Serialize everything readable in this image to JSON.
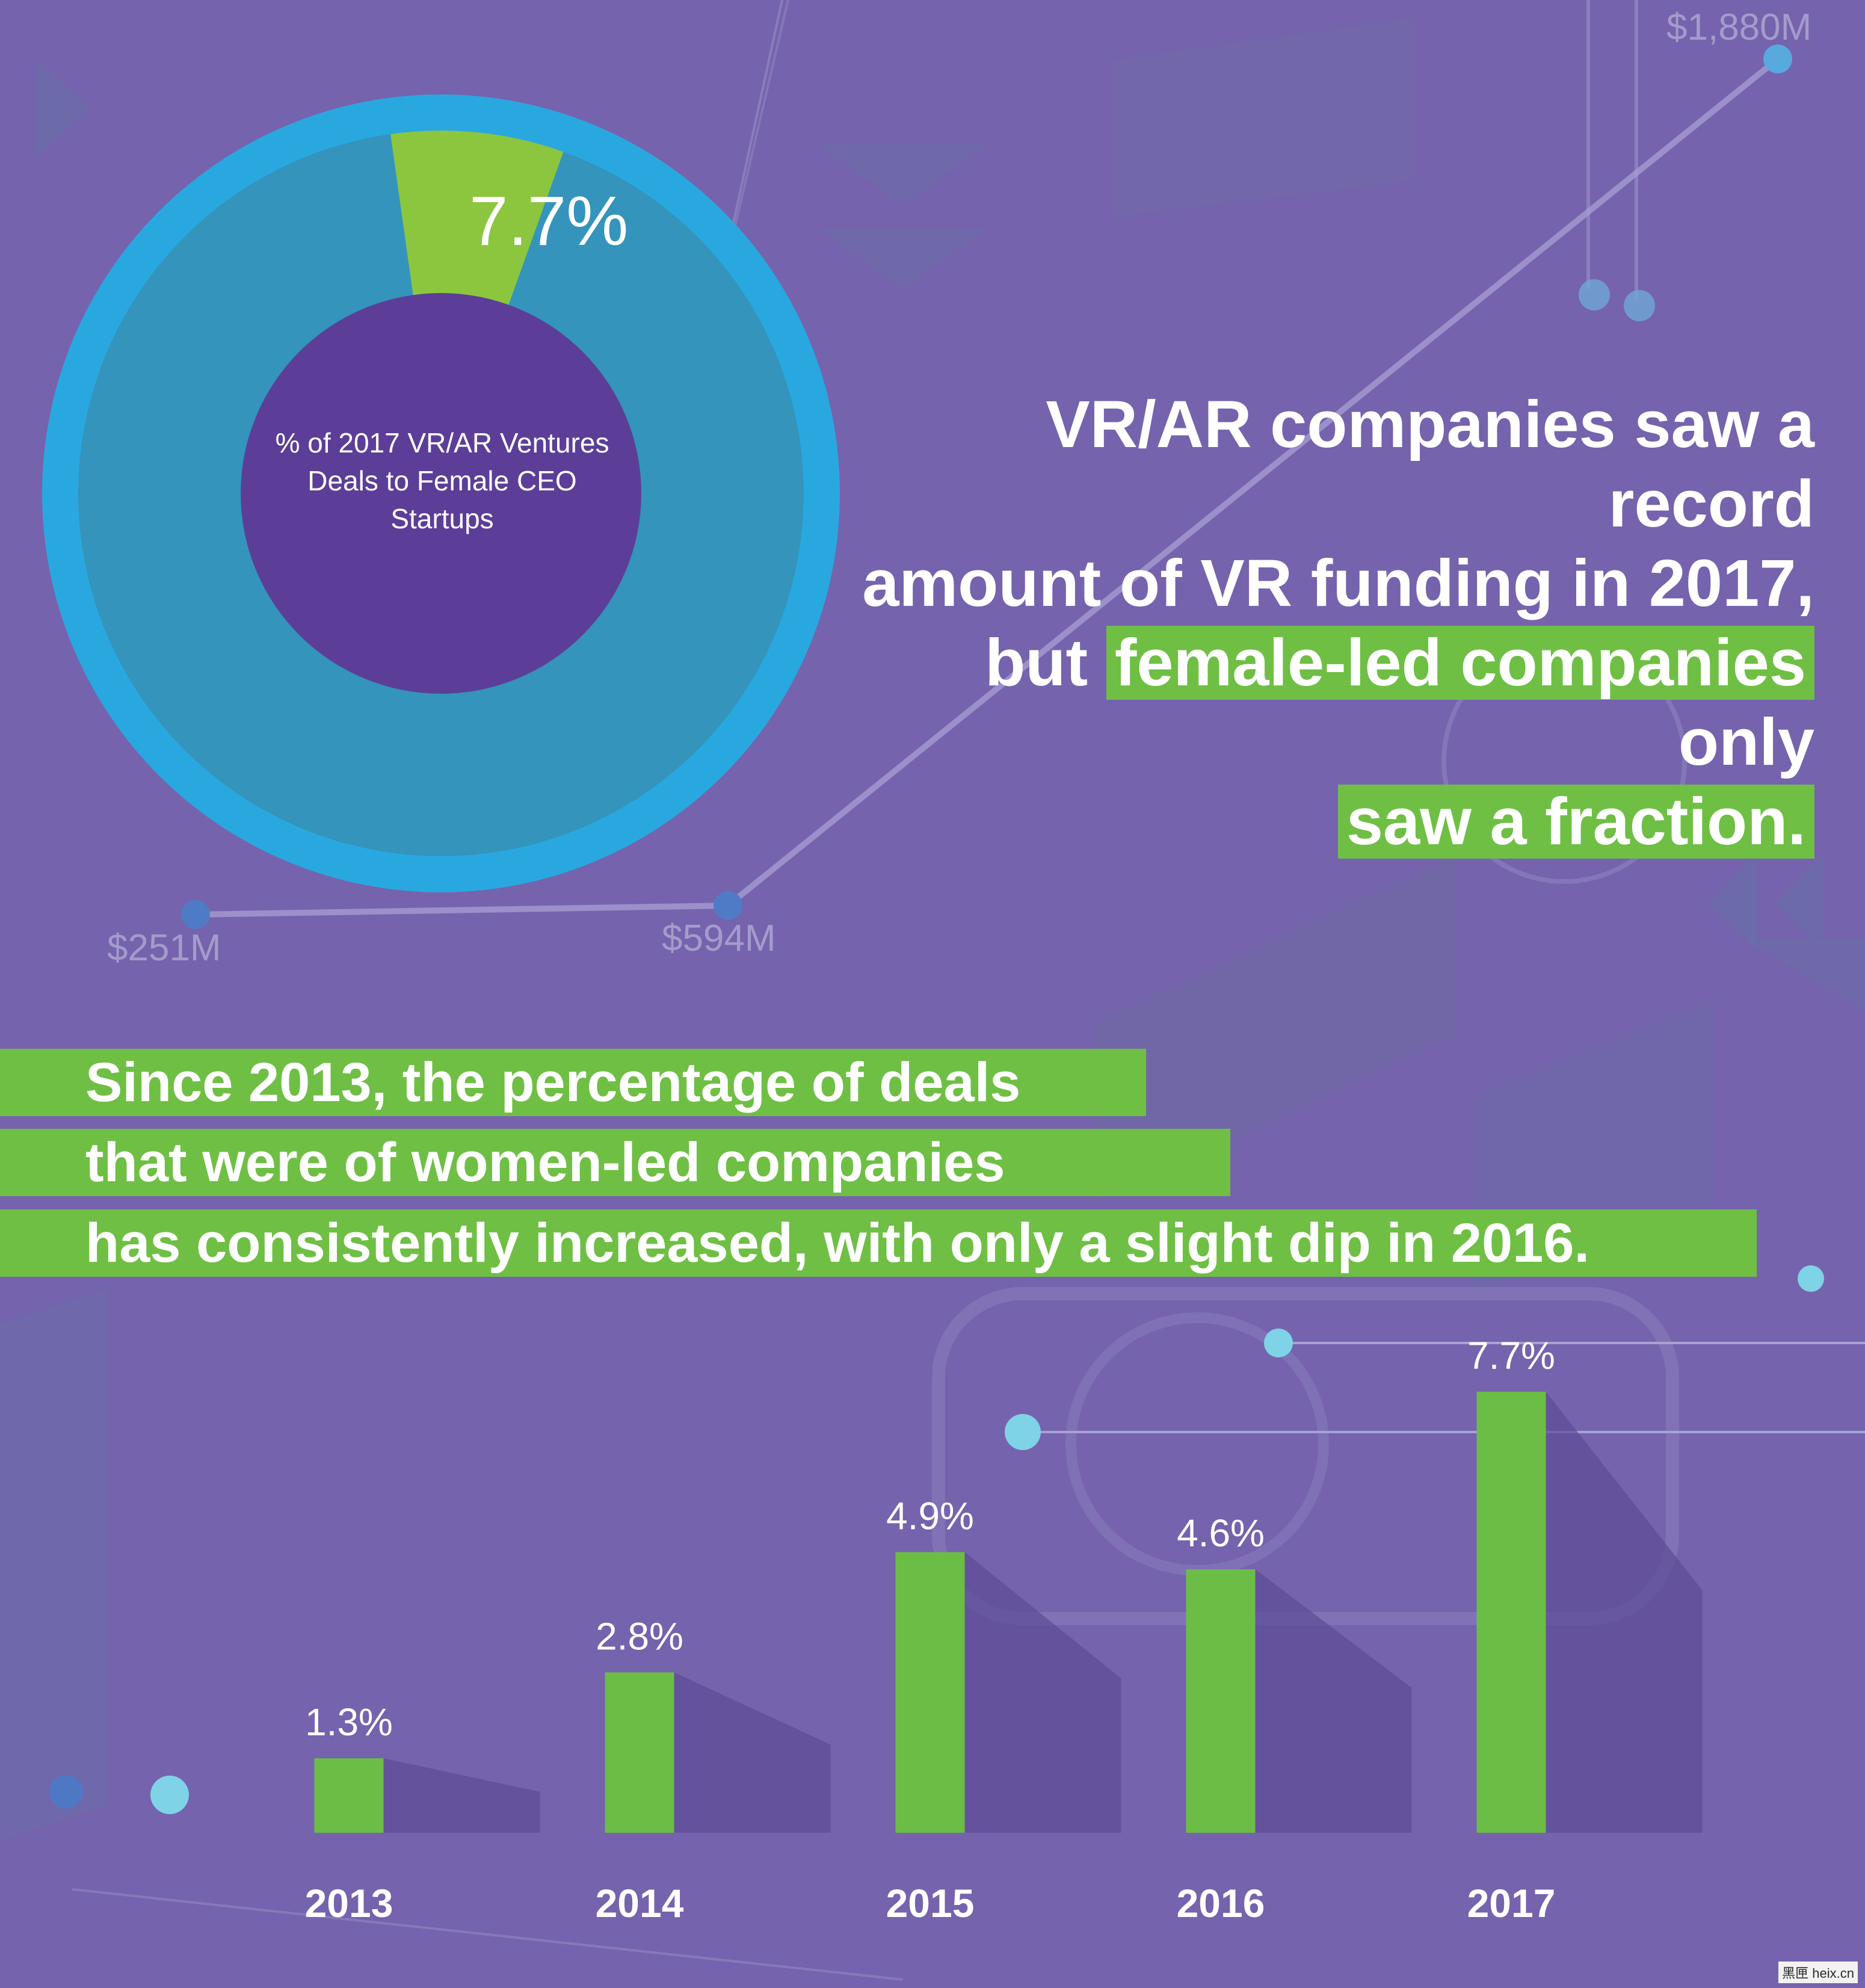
{
  "headline": {
    "line1": "VR/AR companies saw a record",
    "line2": "amount of VR funding in 2017,",
    "line3_pre": "but ",
    "line3_hl": "female-led companies",
    "line3_post": " only",
    "line4_hl": "saw a fraction."
  },
  "paragraph": [
    "Since 2013, the percentage of deals",
    "that were of women-led companies",
    "has consistently increased, with only a slight dip in 2016."
  ],
  "funding_labels": {
    "first": "$251M",
    "middle": "$594M",
    "last": "$1,880M"
  },
  "watermark": "黑匣 heix.cn",
  "chart_data": [
    {
      "type": "pie",
      "title": "% of 2017 VR/AR Ventures Deals to Female CEO Startups",
      "slices": [
        {
          "label": "7.7%",
          "value": 7.7,
          "color": "#8cc63f"
        },
        {
          "label": "",
          "value": 92.3,
          "color": "#29a8e0"
        }
      ]
    },
    {
      "type": "bar",
      "categories": [
        "2013",
        "2014",
        "2015",
        "2016",
        "2017"
      ],
      "values": [
        1.3,
        2.8,
        4.9,
        4.6,
        7.7
      ],
      "data_labels": [
        "1.3%",
        "2.8%",
        "4.9%",
        "4.6%",
        "7.7%"
      ],
      "ylim": [
        0,
        7.7
      ],
      "bar_color": "#6cbd45",
      "grid": false
    }
  ]
}
